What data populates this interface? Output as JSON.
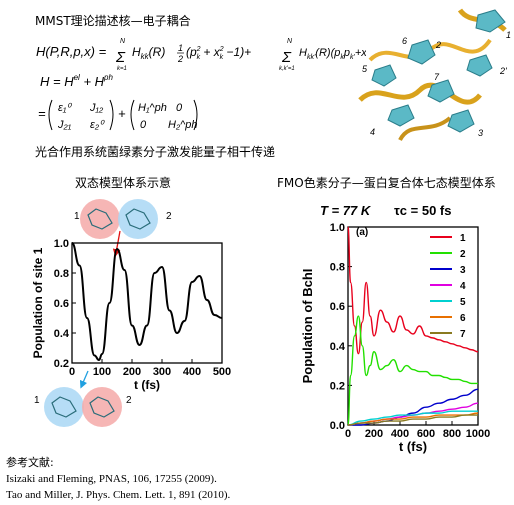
{
  "header": {
    "heading": "MMST理论描述核—电子耦合"
  },
  "equations": {
    "h_lhs": "H(P,R,p,x) = ",
    "h_sum_term": "Σ H_kk(R) ½ (p_k² + x_k² − 1) + Σ H_kk'(R)(p_k p_k' + x_k x_k')",
    "h_split": "H = H^el + H^ph",
    "matrix_el": [
      "ε₁⁰",
      "J₁₂",
      "J₂₁",
      "ε₂⁰"
    ],
    "matrix_ph": [
      "H₁^ph",
      "0",
      "0",
      "H₂^ph"
    ],
    "sum_upper": "N",
    "sum_lower_1": "k=1",
    "sum_lower_2": "k,k'=1"
  },
  "statement": "光合作用系统菌绿素分子激发能量子相干传递",
  "structure_labels": [
    "1",
    "2",
    "2'",
    "3",
    "4",
    "5",
    "6",
    "7"
  ],
  "left_panel": {
    "caption": "双态模型体系示意",
    "site_top_left": "1",
    "site_top_right": "2",
    "site_bottom_left": "1",
    "site_bottom_right": "2"
  },
  "right_panel": {
    "caption": "FMO色素分子—蛋白复合体七态模型体系",
    "temperature_label": "T = 77 K",
    "tau_label": "τc = 50 fs",
    "panel_tag": "(a)"
  },
  "chart_data": [
    {
      "type": "line",
      "title": "",
      "xlabel": "t (fs)",
      "ylabel": "Population of site 1",
      "xlim": [
        0,
        500
      ],
      "ylim": [
        0.2,
        1.0
      ],
      "x_ticks": [
        0,
        100,
        200,
        300,
        400,
        500
      ],
      "y_ticks": [
        0.2,
        0.4,
        0.6,
        0.8,
        1.0
      ],
      "tick_labels_x": [
        "0",
        "100",
        "200",
        "300",
        "400",
        "500"
      ],
      "tick_labels_y": [
        "0.2",
        "0.4",
        "0.6",
        "0.8",
        "1.0"
      ],
      "series": [
        {
          "color": "#000000",
          "x": [
            0,
            25,
            50,
            75,
            90,
            100,
            125,
            150,
            175,
            200,
            225,
            250,
            275,
            300,
            325,
            350,
            375,
            400,
            425,
            450,
            475,
            500
          ],
          "values": [
            1.0,
            0.85,
            0.5,
            0.25,
            0.22,
            0.26,
            0.6,
            0.96,
            0.82,
            0.45,
            0.32,
            0.45,
            0.8,
            0.84,
            0.55,
            0.4,
            0.48,
            0.74,
            0.78,
            0.62,
            0.52,
            0.5
          ]
        }
      ]
    },
    {
      "type": "line",
      "title": "",
      "xlabel": "t (fs)",
      "ylabel": "Population of BchI",
      "xlim": [
        0,
        1000
      ],
      "ylim": [
        0.0,
        1.0
      ],
      "x_ticks": [
        0,
        200,
        400,
        600,
        800,
        1000
      ],
      "y_ticks": [
        0.0,
        0.2,
        0.4,
        0.6,
        0.8,
        1.0
      ],
      "tick_labels_x": [
        "0",
        "200",
        "400",
        "600",
        "800",
        "1000"
      ],
      "tick_labels_y": [
        "0.0",
        "0.2",
        "0.4",
        "0.6",
        "0.8",
        "1.0"
      ],
      "legend_position": "top-right",
      "series": [
        {
          "name": "1",
          "color": "#e8001c",
          "x": [
            0,
            20,
            50,
            80,
            110,
            140,
            170,
            200,
            250,
            300,
            350,
            400,
            450,
            500,
            550,
            600,
            650,
            700,
            750,
            800,
            850,
            900,
            950,
            1000
          ],
          "values": [
            1.0,
            0.72,
            0.5,
            0.36,
            0.52,
            0.72,
            0.55,
            0.45,
            0.58,
            0.52,
            0.47,
            0.55,
            0.48,
            0.46,
            0.5,
            0.45,
            0.44,
            0.43,
            0.42,
            0.41,
            0.4,
            0.39,
            0.38,
            0.37
          ]
        },
        {
          "name": "2",
          "color": "#22e000",
          "x": [
            0,
            20,
            50,
            80,
            110,
            140,
            170,
            200,
            250,
            300,
            350,
            400,
            450,
            500,
            550,
            600,
            650,
            700,
            750,
            800,
            850,
            900,
            950,
            1000
          ],
          "values": [
            0.0,
            0.25,
            0.45,
            0.55,
            0.4,
            0.25,
            0.3,
            0.37,
            0.28,
            0.3,
            0.33,
            0.27,
            0.3,
            0.28,
            0.27,
            0.27,
            0.25,
            0.25,
            0.24,
            0.23,
            0.23,
            0.22,
            0.21,
            0.21
          ]
        },
        {
          "name": "3",
          "color": "#0000cc",
          "x": [
            0,
            100,
            200,
            300,
            400,
            500,
            600,
            700,
            800,
            900,
            1000
          ],
          "values": [
            0.0,
            0.0,
            0.01,
            0.02,
            0.04,
            0.06,
            0.09,
            0.11,
            0.13,
            0.15,
            0.18
          ]
        },
        {
          "name": "4",
          "color": "#e000e0",
          "x": [
            0,
            100,
            200,
            300,
            400,
            500,
            600,
            700,
            800,
            900,
            1000
          ],
          "values": [
            0.0,
            0.01,
            0.02,
            0.03,
            0.04,
            0.05,
            0.06,
            0.07,
            0.08,
            0.09,
            0.11
          ]
        },
        {
          "name": "5",
          "color": "#00d0d0",
          "x": [
            0,
            100,
            200,
            300,
            400,
            500,
            600,
            700,
            800,
            900,
            1000
          ],
          "values": [
            0.0,
            0.02,
            0.03,
            0.04,
            0.05,
            0.05,
            0.06,
            0.06,
            0.07,
            0.07,
            0.07
          ]
        },
        {
          "name": "6",
          "color": "#e87000",
          "x": [
            0,
            100,
            200,
            300,
            400,
            500,
            600,
            700,
            800,
            900,
            1000
          ],
          "values": [
            0.0,
            0.01,
            0.02,
            0.03,
            0.03,
            0.04,
            0.04,
            0.05,
            0.05,
            0.05,
            0.06
          ]
        },
        {
          "name": "7",
          "color": "#8a7a20",
          "x": [
            0,
            100,
            200,
            300,
            400,
            500,
            600,
            700,
            800,
            900,
            1000
          ],
          "values": [
            0.0,
            0.01,
            0.01,
            0.02,
            0.02,
            0.03,
            0.03,
            0.04,
            0.04,
            0.05,
            0.05
          ]
        }
      ]
    }
  ],
  "references": {
    "heading": "参考文献:",
    "items": [
      "Isizaki and Fleming, PNAS, 106, 17255 (2009).",
      "Tao and Miller, J. Phys. Chem. Lett. 1, 891 (2010)."
    ]
  }
}
